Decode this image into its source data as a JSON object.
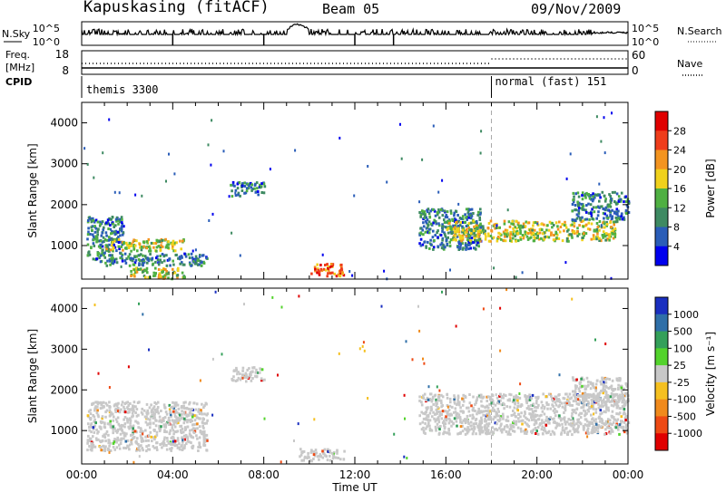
{
  "header": {
    "title": "Kapuskasing (fitACF)",
    "beam": "Beam 05",
    "date": "09/Nov/2009"
  },
  "strip": {
    "nsky_label": "N.Sky",
    "nsky_top": "10^5",
    "nsky_bottom": "10^0",
    "nsearch_label": "N.Search",
    "nsearch_top": "10^5",
    "nsearch_bottom": "10^0",
    "freq_label": "Freq.",
    "freq_unit": "[MHz]",
    "freq_top": "18",
    "freq_bottom": "8",
    "nave_label": "Nave",
    "nave_top": "60",
    "nave_bottom": "0",
    "cpid_label": "CPID",
    "cpid_1": "themis 3300",
    "cpid_2": "normal (fast) 151"
  },
  "chart_data": [
    {
      "type": "heatmap",
      "name": "power",
      "ylabel": "Slant Range [km]",
      "yticks": [
        "1000",
        "2000",
        "3000",
        "4000"
      ],
      "ylim": [
        180,
        4500
      ],
      "xlim": [
        0,
        24
      ],
      "colorbar_label": "Power [dB]",
      "colorbar_ticks": [
        "4",
        "8",
        "12",
        "16",
        "20",
        "24",
        "28"
      ],
      "colors": [
        "#0000ee",
        "#2a5db8",
        "#3e8a62",
        "#4fb042",
        "#f0d11c",
        "#f39420",
        "#ef3d1b",
        "#e00000"
      ],
      "regions": [
        {
          "t": [
            0.2,
            1.8
          ],
          "r": [
            600,
            1700
          ],
          "level": "med"
        },
        {
          "t": [
            1.0,
            4.5
          ],
          "r": [
            850,
            1150
          ],
          "level": "high"
        },
        {
          "t": [
            1.0,
            5.5
          ],
          "r": [
            500,
            800
          ],
          "level": "med"
        },
        {
          "t": [
            2.0,
            4.5
          ],
          "r": [
            180,
            450
          ],
          "level": "high"
        },
        {
          "t": [
            6.5,
            8.0
          ],
          "r": [
            2200,
            2550
          ],
          "level": "med"
        },
        {
          "t": [
            10.0,
            11.5
          ],
          "r": [
            250,
            550
          ],
          "level": "vhigh"
        },
        {
          "t": [
            14.8,
            17.5
          ],
          "r": [
            900,
            1900
          ],
          "level": "med"
        },
        {
          "t": [
            16.0,
            23.5
          ],
          "r": [
            1100,
            1600
          ],
          "level": "high"
        },
        {
          "t": [
            21.5,
            24.0
          ],
          "r": [
            1600,
            2300
          ],
          "level": "med"
        }
      ]
    },
    {
      "type": "heatmap",
      "name": "velocity",
      "ylabel": "Slant Range [km]",
      "yticks": [
        "1000",
        "2000",
        "3000",
        "4000"
      ],
      "ylim": [
        180,
        4500
      ],
      "xlim": [
        0,
        24
      ],
      "xlabel": "Time UT",
      "xticks": [
        "00:00",
        "04:00",
        "08:00",
        "12:00",
        "16:00",
        "20:00",
        "00:00"
      ],
      "colorbar_label": "Velocity [m s⁻¹]",
      "colorbar_ticks": [
        "1000",
        "500",
        "100",
        "25",
        "-25",
        "-100",
        "-500",
        "-1000"
      ],
      "colors": [
        "#1a2fc0",
        "#2f6fa8",
        "#34a05a",
        "#53d32c",
        "#c8c8c8",
        "#f5c020",
        "#f08a1c",
        "#ee4a14",
        "#e00000"
      ],
      "regions": [
        {
          "t": [
            0.2,
            5.5
          ],
          "r": [
            500,
            1700
          ],
          "level": "grey"
        },
        {
          "t": [
            6.5,
            8.0
          ],
          "r": [
            2200,
            2550
          ],
          "level": "grey"
        },
        {
          "t": [
            9.5,
            11.5
          ],
          "r": [
            250,
            550
          ],
          "level": "grey"
        },
        {
          "t": [
            14.8,
            24.0
          ],
          "r": [
            900,
            1900
          ],
          "level": "grey"
        },
        {
          "t": [
            21.5,
            24.0
          ],
          "r": [
            1600,
            2300
          ],
          "level": "grey"
        }
      ]
    }
  ]
}
